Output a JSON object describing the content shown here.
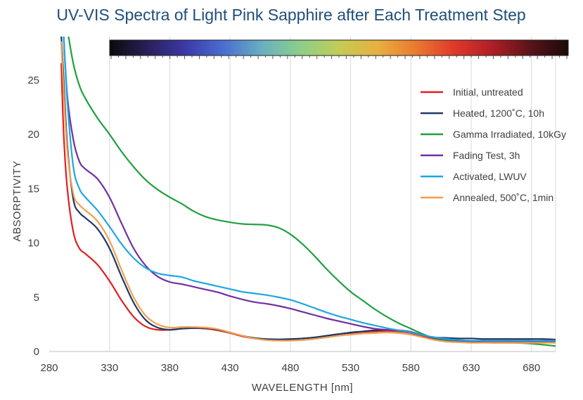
{
  "chart_data": {
    "type": "line",
    "title": "UV-VIS Spectra of Light Pink Sapphire after Each Treatment Step",
    "xlabel": "WAVELENGTH [nm]",
    "ylabel": "ABSORPTIVITY",
    "xlim": [
      280,
      700
    ],
    "ylim": [
      0,
      29
    ],
    "x_ticks": [
      280,
      330,
      380,
      430,
      480,
      530,
      580,
      630,
      680
    ],
    "y_ticks": [
      0,
      5,
      10,
      15,
      20,
      25
    ],
    "grid": "vertical",
    "legend_position": "top-right",
    "color_bar": {
      "description": "visible spectrum color strip",
      "stops": [
        "#0a0a0a",
        "#2a1f5a",
        "#3b3aa8",
        "#4b6fd0",
        "#6ab0c0",
        "#8ccf88",
        "#c2cc55",
        "#e8b040",
        "#ea7a30",
        "#e03a2a",
        "#b01e28",
        "#5a1418",
        "#1a0a0a"
      ]
    },
    "series": [
      {
        "name": "Initial, untreated",
        "color": "#e0201f",
        "points": [
          [
            290,
            26.5
          ],
          [
            292,
            20
          ],
          [
            295,
            15
          ],
          [
            300,
            11
          ],
          [
            305,
            9.5
          ],
          [
            310,
            9
          ],
          [
            320,
            8
          ],
          [
            330,
            6.5
          ],
          [
            340,
            4.7
          ],
          [
            350,
            3.2
          ],
          [
            360,
            2.3
          ],
          [
            370,
            2.0
          ],
          [
            380,
            2.0
          ],
          [
            390,
            2.1
          ],
          [
            400,
            2.15
          ],
          [
            410,
            2.1
          ],
          [
            420,
            1.95
          ],
          [
            430,
            1.7
          ],
          [
            440,
            1.4
          ],
          [
            450,
            1.2
          ],
          [
            460,
            1.1
          ],
          [
            470,
            1.08
          ],
          [
            480,
            1.1
          ],
          [
            490,
            1.2
          ],
          [
            500,
            1.3
          ],
          [
            510,
            1.45
          ],
          [
            520,
            1.6
          ],
          [
            530,
            1.7
          ],
          [
            540,
            1.8
          ],
          [
            550,
            1.85
          ],
          [
            560,
            1.9
          ],
          [
            570,
            1.85
          ],
          [
            580,
            1.7
          ],
          [
            590,
            1.4
          ],
          [
            600,
            1.1
          ],
          [
            610,
            1.0
          ],
          [
            620,
            0.95
          ],
          [
            630,
            0.95
          ],
          [
            640,
            0.95
          ],
          [
            650,
            0.95
          ],
          [
            660,
            0.95
          ],
          [
            670,
            0.95
          ],
          [
            680,
            0.95
          ],
          [
            690,
            0.95
          ],
          [
            700,
            0.95
          ]
        ]
      },
      {
        "name": "Heated, 1200˚C, 10h",
        "color": "#1f3864",
        "points": [
          [
            290,
            29
          ],
          [
            292,
            25
          ],
          [
            295,
            19
          ],
          [
            300,
            14
          ],
          [
            305,
            12.8
          ],
          [
            310,
            12.3
          ],
          [
            320,
            11.3
          ],
          [
            330,
            9.5
          ],
          [
            340,
            6.9
          ],
          [
            350,
            4.5
          ],
          [
            360,
            2.9
          ],
          [
            370,
            2.2
          ],
          [
            380,
            2.0
          ],
          [
            390,
            2.1
          ],
          [
            400,
            2.15
          ],
          [
            410,
            2.15
          ],
          [
            420,
            2.0
          ],
          [
            430,
            1.75
          ],
          [
            440,
            1.45
          ],
          [
            450,
            1.25
          ],
          [
            460,
            1.15
          ],
          [
            470,
            1.12
          ],
          [
            480,
            1.15
          ],
          [
            490,
            1.2
          ],
          [
            500,
            1.3
          ],
          [
            510,
            1.45
          ],
          [
            520,
            1.6
          ],
          [
            530,
            1.75
          ],
          [
            540,
            1.85
          ],
          [
            550,
            1.95
          ],
          [
            560,
            2.0
          ],
          [
            570,
            1.95
          ],
          [
            580,
            1.8
          ],
          [
            590,
            1.5
          ],
          [
            600,
            1.3
          ],
          [
            610,
            1.25
          ],
          [
            620,
            1.2
          ],
          [
            630,
            1.2
          ],
          [
            640,
            1.15
          ],
          [
            650,
            1.15
          ],
          [
            660,
            1.15
          ],
          [
            670,
            1.15
          ],
          [
            680,
            1.15
          ],
          [
            690,
            1.15
          ],
          [
            700,
            1.1
          ]
        ]
      },
      {
        "name": "Gamma Irradiated, 10kGy",
        "color": "#20a040",
        "points": [
          [
            296,
            29
          ],
          [
            300,
            26.5
          ],
          [
            305,
            24.5
          ],
          [
            310,
            23.3
          ],
          [
            320,
            21.5
          ],
          [
            330,
            20.0
          ],
          [
            340,
            18.4
          ],
          [
            350,
            17.0
          ],
          [
            360,
            15.8
          ],
          [
            370,
            14.9
          ],
          [
            380,
            14.2
          ],
          [
            390,
            13.6
          ],
          [
            400,
            12.9
          ],
          [
            410,
            12.4
          ],
          [
            420,
            12.1
          ],
          [
            430,
            11.9
          ],
          [
            440,
            11.75
          ],
          [
            450,
            11.7
          ],
          [
            460,
            11.65
          ],
          [
            470,
            11.4
          ],
          [
            480,
            10.8
          ],
          [
            490,
            9.9
          ],
          [
            500,
            8.8
          ],
          [
            510,
            7.6
          ],
          [
            520,
            6.5
          ],
          [
            530,
            5.5
          ],
          [
            540,
            4.7
          ],
          [
            550,
            3.9
          ],
          [
            560,
            3.2
          ],
          [
            570,
            2.6
          ],
          [
            580,
            2.1
          ],
          [
            590,
            1.6
          ],
          [
            600,
            1.2
          ],
          [
            610,
            1.0
          ],
          [
            620,
            0.9
          ],
          [
            630,
            0.85
          ],
          [
            640,
            0.82
          ],
          [
            650,
            0.8
          ],
          [
            660,
            0.8
          ],
          [
            670,
            0.78
          ],
          [
            680,
            0.72
          ],
          [
            690,
            0.62
          ],
          [
            700,
            0.5
          ]
        ]
      },
      {
        "name": "Fading Test, 3h",
        "color": "#7030a0",
        "points": [
          [
            292,
            29
          ],
          [
            295,
            23.5
          ],
          [
            300,
            19.5
          ],
          [
            305,
            17.5
          ],
          [
            310,
            16.8
          ],
          [
            320,
            15.9
          ],
          [
            330,
            14.2
          ],
          [
            340,
            11.8
          ],
          [
            350,
            9.5
          ],
          [
            360,
            7.9
          ],
          [
            370,
            6.9
          ],
          [
            380,
            6.4
          ],
          [
            390,
            6.2
          ],
          [
            400,
            5.95
          ],
          [
            410,
            5.7
          ],
          [
            420,
            5.45
          ],
          [
            430,
            5.1
          ],
          [
            440,
            4.8
          ],
          [
            450,
            4.55
          ],
          [
            460,
            4.4
          ],
          [
            470,
            4.2
          ],
          [
            480,
            3.95
          ],
          [
            490,
            3.65
          ],
          [
            500,
            3.35
          ],
          [
            510,
            3.05
          ],
          [
            520,
            2.8
          ],
          [
            530,
            2.55
          ],
          [
            540,
            2.3
          ],
          [
            550,
            2.1
          ],
          [
            560,
            2.0
          ],
          [
            570,
            1.95
          ],
          [
            580,
            1.8
          ],
          [
            590,
            1.5
          ],
          [
            600,
            1.25
          ],
          [
            610,
            1.1
          ],
          [
            620,
            1.0
          ],
          [
            630,
            0.95
          ],
          [
            640,
            0.95
          ],
          [
            650,
            0.95
          ],
          [
            660,
            0.95
          ],
          [
            670,
            0.95
          ],
          [
            680,
            0.95
          ],
          [
            690,
            0.95
          ],
          [
            700,
            0.95
          ]
        ]
      },
      {
        "name": "Activated, LWUV",
        "color": "#1ea7e0",
        "points": [
          [
            292,
            29
          ],
          [
            295,
            23
          ],
          [
            300,
            17
          ],
          [
            305,
            15
          ],
          [
            310,
            14.2
          ],
          [
            320,
            13.0
          ],
          [
            330,
            11.5
          ],
          [
            340,
            9.9
          ],
          [
            350,
            8.6
          ],
          [
            360,
            7.7
          ],
          [
            370,
            7.2
          ],
          [
            380,
            7.0
          ],
          [
            390,
            6.85
          ],
          [
            400,
            6.5
          ],
          [
            410,
            6.25
          ],
          [
            420,
            6.0
          ],
          [
            430,
            5.75
          ],
          [
            440,
            5.5
          ],
          [
            450,
            5.35
          ],
          [
            460,
            5.2
          ],
          [
            470,
            5.0
          ],
          [
            480,
            4.75
          ],
          [
            490,
            4.4
          ],
          [
            500,
            4.0
          ],
          [
            510,
            3.6
          ],
          [
            520,
            3.25
          ],
          [
            530,
            2.95
          ],
          [
            540,
            2.65
          ],
          [
            550,
            2.4
          ],
          [
            560,
            2.15
          ],
          [
            570,
            1.95
          ],
          [
            580,
            1.75
          ],
          [
            590,
            1.5
          ],
          [
            600,
            1.3
          ],
          [
            610,
            1.15
          ],
          [
            620,
            1.05
          ],
          [
            630,
            1.0
          ],
          [
            640,
            1.0
          ],
          [
            650,
            1.0
          ],
          [
            660,
            1.0
          ],
          [
            670,
            1.0
          ],
          [
            680,
            1.0
          ],
          [
            690,
            1.0
          ],
          [
            700,
            1.0
          ]
        ]
      },
      {
        "name": "Annealed, 500˚C, 1min",
        "color": "#f0a050",
        "points": [
          [
            290,
            28.5
          ],
          [
            292,
            24
          ],
          [
            295,
            18.5
          ],
          [
            300,
            14.5
          ],
          [
            305,
            13.5
          ],
          [
            310,
            13.0
          ],
          [
            320,
            12.0
          ],
          [
            330,
            10.2
          ],
          [
            340,
            7.5
          ],
          [
            350,
            5.0
          ],
          [
            360,
            3.3
          ],
          [
            370,
            2.5
          ],
          [
            380,
            2.2
          ],
          [
            390,
            2.25
          ],
          [
            400,
            2.25
          ],
          [
            410,
            2.2
          ],
          [
            420,
            2.05
          ],
          [
            430,
            1.75
          ],
          [
            440,
            1.45
          ],
          [
            450,
            1.2
          ],
          [
            460,
            1.05
          ],
          [
            470,
            1.0
          ],
          [
            480,
            1.0
          ],
          [
            490,
            1.05
          ],
          [
            500,
            1.15
          ],
          [
            510,
            1.3
          ],
          [
            520,
            1.45
          ],
          [
            530,
            1.55
          ],
          [
            540,
            1.65
          ],
          [
            550,
            1.7
          ],
          [
            560,
            1.75
          ],
          [
            570,
            1.7
          ],
          [
            580,
            1.55
          ],
          [
            590,
            1.3
          ],
          [
            600,
            1.05
          ],
          [
            610,
            0.9
          ],
          [
            620,
            0.85
          ],
          [
            630,
            0.8
          ],
          [
            640,
            0.8
          ],
          [
            650,
            0.8
          ],
          [
            660,
            0.8
          ],
          [
            670,
            0.8
          ],
          [
            680,
            0.8
          ],
          [
            690,
            0.8
          ],
          [
            700,
            0.8
          ]
        ]
      }
    ]
  }
}
